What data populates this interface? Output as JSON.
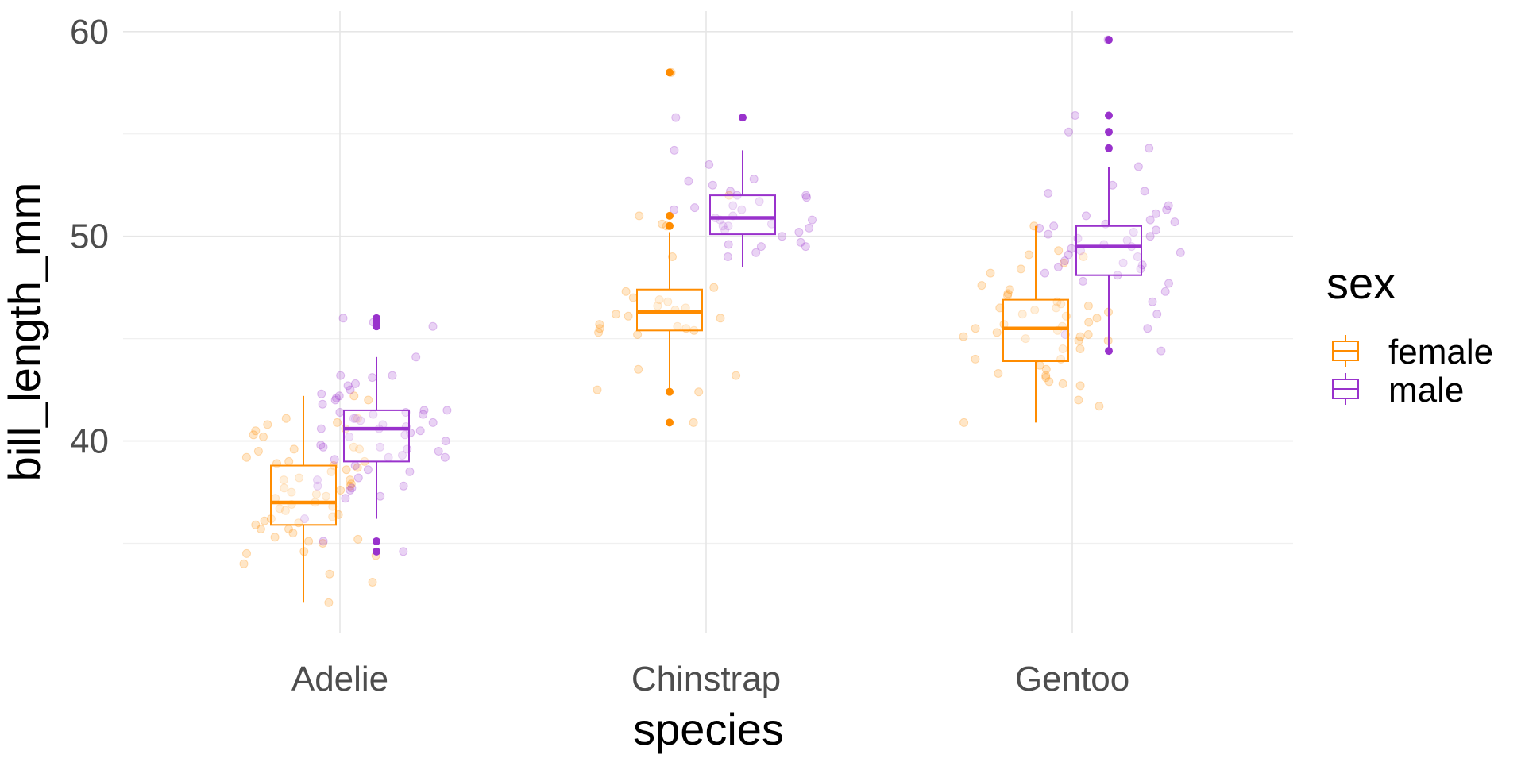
{
  "chart_data": {
    "type": "boxplot",
    "xlabel": "species",
    "ylabel": "bill_length_mm",
    "categories": [
      "Adelie",
      "Chinstrap",
      "Gentoo"
    ],
    "yticks": [
      40,
      50,
      60
    ],
    "ylim": [
      30.6,
      61
    ],
    "grid": true,
    "legend": {
      "title": "sex",
      "position": "right"
    },
    "series": [
      {
        "name": "female",
        "color": "#ff8c00",
        "boxes": [
          {
            "min": 32.1,
            "q1": 35.9,
            "median": 37.0,
            "q3": 38.8,
            "max": 42.2,
            "outliers": []
          },
          {
            "min": 42.4,
            "q1": 45.4,
            "median": 46.3,
            "q3": 47.4,
            "max": 50.2,
            "outliers": [
              40.9,
              42.4,
              50.5,
              51.0,
              58.0
            ]
          },
          {
            "min": 40.9,
            "q1": 43.9,
            "median": 45.5,
            "q3": 46.9,
            "max": 50.5,
            "outliers": []
          }
        ],
        "points": [
          [
            37.3,
            35.3,
            35.0,
            34.4,
            33.5,
            32.1,
            40.5,
            39.6,
            38.8,
            37.9,
            36.4,
            36.7,
            38.6,
            39.5,
            37.0,
            36.1,
            35.7,
            40.6,
            41.1,
            39.7,
            34.5,
            38.2,
            40.9,
            38.1,
            36.2,
            37.7,
            39.0,
            38.7,
            36.9,
            35.5,
            37.8,
            35.9,
            40.3,
            38.9,
            36.6,
            34.6,
            33.1,
            36.0,
            37.6,
            40.2,
            39.6,
            35.2,
            38.1,
            37.2,
            35.1,
            42.2,
            36.8,
            39.2,
            37.4,
            34.0,
            38.5,
            35.7,
            36.3,
            40.8,
            41.1,
            39.0,
            37.5,
            42.0
          ],
          [
            46.9,
            45.5,
            47.0,
            46.2,
            45.4,
            42.5,
            43.5,
            45.2,
            46.6,
            46.1,
            47.5,
            50.5,
            46.4,
            46.0,
            45.5,
            42.4,
            45.7,
            45.6,
            50.6,
            58.0,
            40.9,
            51.0,
            46.8,
            43.2,
            47.3,
            49.0,
            52.0,
            46.5,
            45.3
          ],
          [
            46.5,
            45.4,
            48.4,
            45.1,
            44.5,
            45.7,
            42.0,
            44.9,
            46.4,
            48.2,
            43.2,
            46.7,
            45.8,
            43.5,
            48.7,
            44.0,
            41.7,
            45.5,
            43.3,
            49.1,
            44.5,
            47.2,
            46.6,
            45.3,
            42.7,
            46.2,
            45.0,
            40.9,
            47.4,
            46.1,
            49.0,
            44.9,
            46.3,
            42.9,
            45.2,
            47.1,
            45.1,
            46.5,
            43.7,
            46.8,
            42.8,
            44.0,
            50.5,
            49.3,
            46.0,
            45.6,
            47.6,
            43.1
          ]
        ]
      },
      {
        "name": "male",
        "color": "#9932cc",
        "boxes": [
          {
            "min": 36.2,
            "q1": 39.0,
            "median": 40.6,
            "q3": 41.5,
            "max": 44.1,
            "outliers": [
              34.6,
              35.1,
              45.6,
              45.8,
              46.0
            ]
          },
          {
            "min": 48.5,
            "q1": 50.1,
            "median": 50.9,
            "q3": 52.0,
            "max": 54.2,
            "outliers": [
              55.8
            ]
          },
          {
            "min": 44.4,
            "q1": 48.1,
            "median": 49.5,
            "q3": 50.5,
            "max": 53.4,
            "outliers": [
              44.4,
              54.3,
              55.1,
              55.9,
              59.6
            ]
          }
        ],
        "points": [
          [
            39.1,
            39.3,
            38.6,
            42.5,
            37.8,
            41.1,
            38.2,
            42.2,
            37.7,
            39.8,
            40.8,
            39.2,
            41.4,
            40.6,
            41.5,
            40.5,
            37.6,
            41.3,
            45.8,
            39.7,
            40.9,
            41.1,
            36.2,
            43.2,
            41.0,
            37.8,
            41.8,
            40.6,
            42.3,
            44.1,
            39.6,
            40.7,
            38.8,
            42.0,
            43.1,
            39.5,
            40.2,
            38.1,
            45.6,
            42.8,
            41.5,
            42.1,
            41.4,
            39.2,
            40.0,
            43.2,
            40.4,
            42.7,
            41.3,
            37.2,
            39.7,
            38.5,
            37.3,
            40.3,
            34.6,
            46.0,
            35.1
          ],
          [
            50.0,
            51.3,
            52.7,
            51.3,
            52.0,
            50.5,
            50.6,
            49.5,
            52.8,
            50.8,
            51.0,
            51.5,
            49.2,
            50.9,
            52.0,
            49.5,
            51.7,
            50.5,
            50.2,
            53.5,
            55.8,
            49.6,
            49.0,
            51.9,
            50.8,
            54.2,
            52.2,
            50.3,
            51.4,
            49.7,
            52.5,
            50.4
          ],
          [
            48.4,
            49.2,
            50.8,
            49.6,
            50.2,
            51.3,
            49.3,
            50.0,
            48.7,
            49.8,
            48.1,
            50.1,
            47.7,
            52.2,
            50.4,
            49.5,
            49.9,
            51.1,
            48.6,
            50.7,
            52.5,
            47.3,
            45.2,
            50.5,
            49.1,
            51.5,
            46.8,
            55.9,
            47.8,
            44.4,
            54.3,
            49.0,
            53.4,
            48.8,
            46.2,
            50.3,
            45.5,
            55.1,
            48.5,
            52.1,
            49.4,
            51.0,
            50.6,
            59.6,
            48.2
          ]
        ]
      }
    ]
  }
}
